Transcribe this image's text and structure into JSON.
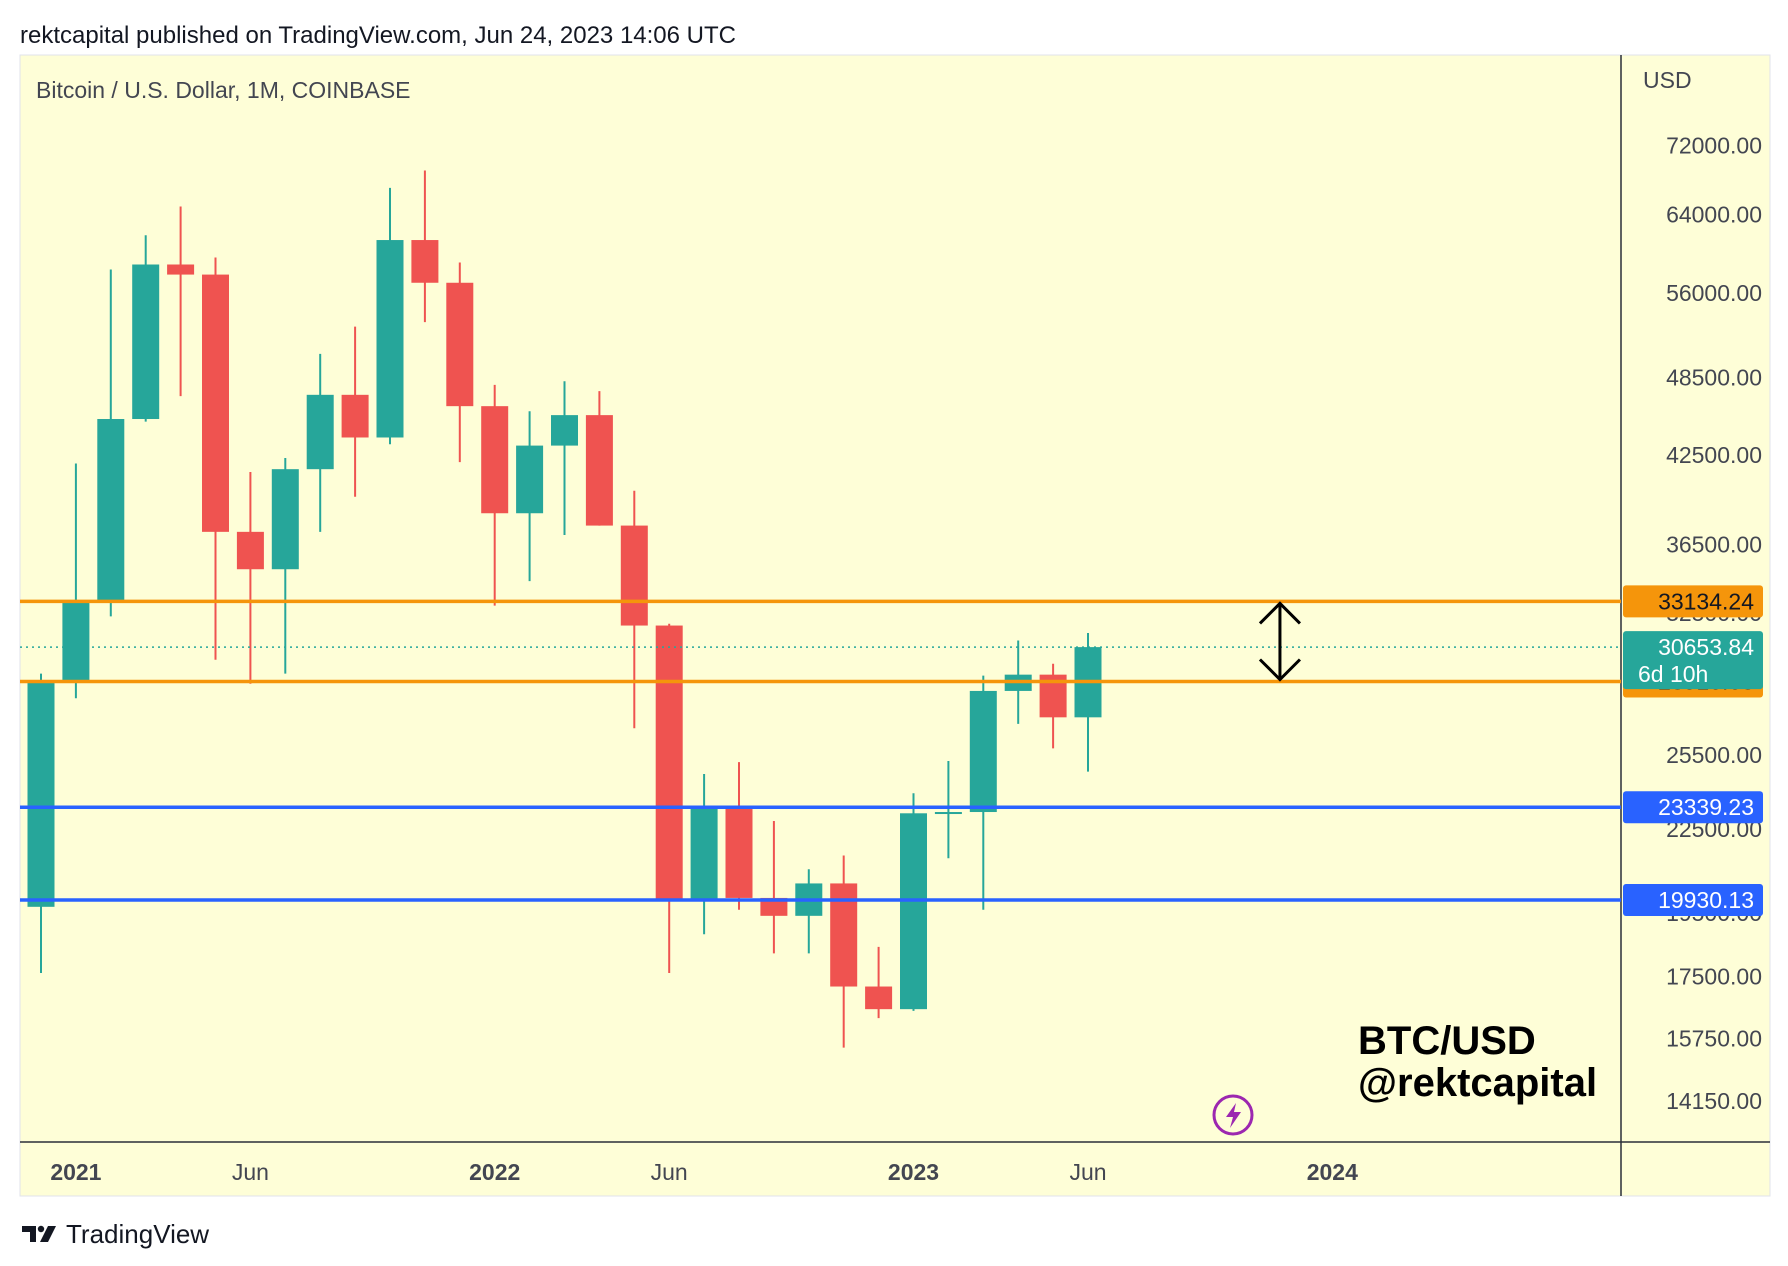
{
  "header": {
    "published_line": "rektcapital published on TradingView.com, Jun 24, 2023 14:06 UTC"
  },
  "footer": {
    "brand": "TradingView",
    "logo_icon": "tradingview-logo-icon"
  },
  "chart_data": {
    "type": "candlestick",
    "title": "Bitcoin / U.S. Dollar, 1M, COINBASE",
    "currency_label": "USD",
    "y_scale": "log",
    "ylim": [
      13200,
      84000
    ],
    "grid": false,
    "background_color": "#fefed7",
    "up_color": "#26a69a",
    "down_color": "#ef5350",
    "y_ticks": [
      {
        "value": 72000,
        "label": "72000.00"
      },
      {
        "value": 64000,
        "label": "64000.00"
      },
      {
        "value": 56000,
        "label": "56000.00"
      },
      {
        "value": 48500,
        "label": "48500.00"
      },
      {
        "value": 42500,
        "label": "42500.00"
      },
      {
        "value": 36500,
        "label": "36500.00"
      },
      {
        "value": 32500,
        "label": "32500.00"
      },
      {
        "value": 25500,
        "label": "25500.00"
      },
      {
        "value": 22500,
        "label": "22500.00"
      },
      {
        "value": 19500,
        "label": "19500.00"
      },
      {
        "value": 17500,
        "label": "17500.00"
      },
      {
        "value": 15750,
        "label": "15750.00"
      },
      {
        "value": 14150,
        "label": "14150.00"
      }
    ],
    "x_ticks": [
      {
        "index": 1,
        "label": "2021",
        "bold": true
      },
      {
        "index": 6,
        "label": "Jun",
        "bold": false
      },
      {
        "index": 13,
        "label": "2022",
        "bold": true
      },
      {
        "index": 18,
        "label": "Jun",
        "bold": false
      },
      {
        "index": 25,
        "label": "2023",
        "bold": true
      },
      {
        "index": 30,
        "label": "Jun",
        "bold": false
      },
      {
        "index": 37,
        "label": "2024",
        "bold": true
      }
    ],
    "candles": [
      {
        "month": "2020-12",
        "open": 19700,
        "high": 29300,
        "low": 17600,
        "close": 28900
      },
      {
        "month": "2021-01",
        "open": 28900,
        "high": 41900,
        "low": 28100,
        "close": 33100
      },
      {
        "month": "2021-02",
        "open": 33100,
        "high": 58300,
        "low": 32300,
        "close": 45200
      },
      {
        "month": "2021-03",
        "open": 45200,
        "high": 61800,
        "low": 45000,
        "close": 58800
      },
      {
        "month": "2021-04",
        "open": 58800,
        "high": 64900,
        "low": 47000,
        "close": 57800
      },
      {
        "month": "2021-05",
        "open": 57800,
        "high": 59500,
        "low": 30000,
        "close": 37300
      },
      {
        "month": "2021-06",
        "open": 37300,
        "high": 41300,
        "low": 28800,
        "close": 35000
      },
      {
        "month": "2021-07",
        "open": 35000,
        "high": 42300,
        "low": 29300,
        "close": 41500
      },
      {
        "month": "2021-08",
        "open": 41500,
        "high": 50500,
        "low": 37300,
        "close": 47100
      },
      {
        "month": "2021-09",
        "open": 47100,
        "high": 52900,
        "low": 39600,
        "close": 43800
      },
      {
        "month": "2021-10",
        "open": 43800,
        "high": 67000,
        "low": 43300,
        "close": 61300
      },
      {
        "month": "2021-11",
        "open": 61300,
        "high": 69000,
        "low": 53300,
        "close": 57000
      },
      {
        "month": "2021-12",
        "open": 57000,
        "high": 59000,
        "low": 42000,
        "close": 46200
      },
      {
        "month": "2022-01",
        "open": 46200,
        "high": 47900,
        "low": 32900,
        "close": 38500
      },
      {
        "month": "2022-02",
        "open": 38500,
        "high": 45800,
        "low": 34300,
        "close": 43200
      },
      {
        "month": "2022-03",
        "open": 43200,
        "high": 48200,
        "low": 37100,
        "close": 45500
      },
      {
        "month": "2022-04",
        "open": 45500,
        "high": 47400,
        "low": 37700,
        "close": 37700
      },
      {
        "month": "2022-05",
        "open": 37700,
        "high": 40000,
        "low": 26700,
        "close": 31800
      },
      {
        "month": "2022-06",
        "open": 31800,
        "high": 31900,
        "low": 17600,
        "close": 19950
      },
      {
        "month": "2022-07",
        "open": 19950,
        "high": 24700,
        "low": 18800,
        "close": 23300
      },
      {
        "month": "2022-08",
        "open": 23300,
        "high": 25200,
        "low": 19600,
        "close": 20000
      },
      {
        "month": "2022-09",
        "open": 20000,
        "high": 22800,
        "low": 18200,
        "close": 19400
      },
      {
        "month": "2022-10",
        "open": 19400,
        "high": 21000,
        "low": 18200,
        "close": 20500
      },
      {
        "month": "2022-11",
        "open": 20500,
        "high": 21500,
        "low": 15500,
        "close": 17200
      },
      {
        "month": "2022-12",
        "open": 17200,
        "high": 18400,
        "low": 16300,
        "close": 16550
      },
      {
        "month": "2023-01",
        "open": 16550,
        "high": 23900,
        "low": 16500,
        "close": 23100
      },
      {
        "month": "2023-02",
        "open": 23100,
        "high": 25250,
        "low": 21400,
        "close": 23150
      },
      {
        "month": "2023-03",
        "open": 23150,
        "high": 29200,
        "low": 19600,
        "close": 28450
      },
      {
        "month": "2023-04",
        "open": 28450,
        "high": 31000,
        "low": 26900,
        "close": 29250
      },
      {
        "month": "2023-05",
        "open": 29250,
        "high": 29800,
        "low": 25800,
        "close": 27200
      },
      {
        "month": "2023-06",
        "open": 27200,
        "high": 31400,
        "low": 24800,
        "close": 30653.84
      }
    ],
    "horizontal_lines": [
      {
        "value": 33134.24,
        "label": "33134.24",
        "color": "#f5950b",
        "style": "solid"
      },
      {
        "value": 28910.68,
        "label": "28910.68",
        "color": "#f5950b",
        "style": "solid"
      },
      {
        "value": 23339.23,
        "label": "23339.23",
        "color": "#2962ff",
        "style": "solid"
      },
      {
        "value": 19930.13,
        "label": "19930.13",
        "color": "#2962ff",
        "style": "solid"
      },
      {
        "value": 30653.84,
        "label": "30653.84",
        "color": "#26a69a",
        "style": "dotted"
      }
    ],
    "current_price": {
      "value": 30653.84,
      "label": "30653.84",
      "countdown": "6d 10h"
    },
    "annotations": [
      {
        "type": "double-arrow",
        "from": 33134.24,
        "to": 28910.68,
        "index": 35.5
      },
      {
        "type": "text",
        "lines": [
          "BTC/USD",
          "@rektcapital"
        ]
      }
    ],
    "icons": [
      "lightning-event-icon"
    ]
  }
}
